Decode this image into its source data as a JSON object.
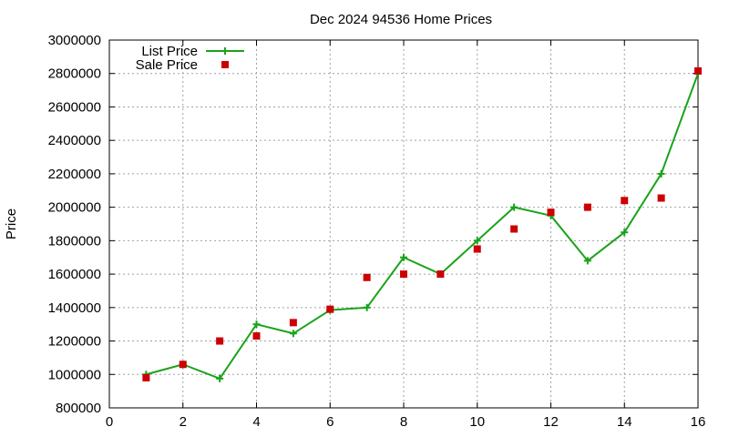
{
  "chart_data": {
    "type": "line",
    "title": "Dec 2024 94536 Home Prices",
    "xlabel": "",
    "ylabel": "Price",
    "xlim": [
      0,
      16
    ],
    "ylim": [
      800000,
      3000000
    ],
    "x_ticks": [
      0,
      2,
      4,
      6,
      8,
      10,
      12,
      14,
      16
    ],
    "y_ticks": [
      800000,
      1000000,
      1200000,
      1400000,
      1600000,
      1800000,
      2000000,
      2200000,
      2400000,
      2600000,
      2800000,
      3000000
    ],
    "grid": true,
    "legend_position": "top-left",
    "series": [
      {
        "name": "List Price",
        "style": "line-with-plus-markers",
        "color": "#1aa31a",
        "x": [
          1,
          2,
          3,
          4,
          5,
          6,
          7,
          8,
          9,
          10,
          11,
          12,
          13,
          14,
          15,
          16
        ],
        "y": [
          1000000,
          1060000,
          975000,
          1300000,
          1245000,
          1385000,
          1400000,
          1700000,
          1600000,
          1800000,
          2000000,
          1950000,
          1680000,
          1850000,
          2200000,
          2800000
        ]
      },
      {
        "name": "Sale Price",
        "style": "square-markers",
        "color": "#cc0000",
        "x": [
          1,
          2,
          3,
          4,
          5,
          6,
          7,
          8,
          9,
          10,
          11,
          12,
          13,
          14,
          15,
          16
        ],
        "y": [
          980000,
          1060000,
          1200000,
          1230000,
          1310000,
          1390000,
          1580000,
          1600000,
          1600000,
          1750000,
          1870000,
          1970000,
          2000000,
          2040000,
          2055000,
          2815000
        ]
      }
    ]
  }
}
